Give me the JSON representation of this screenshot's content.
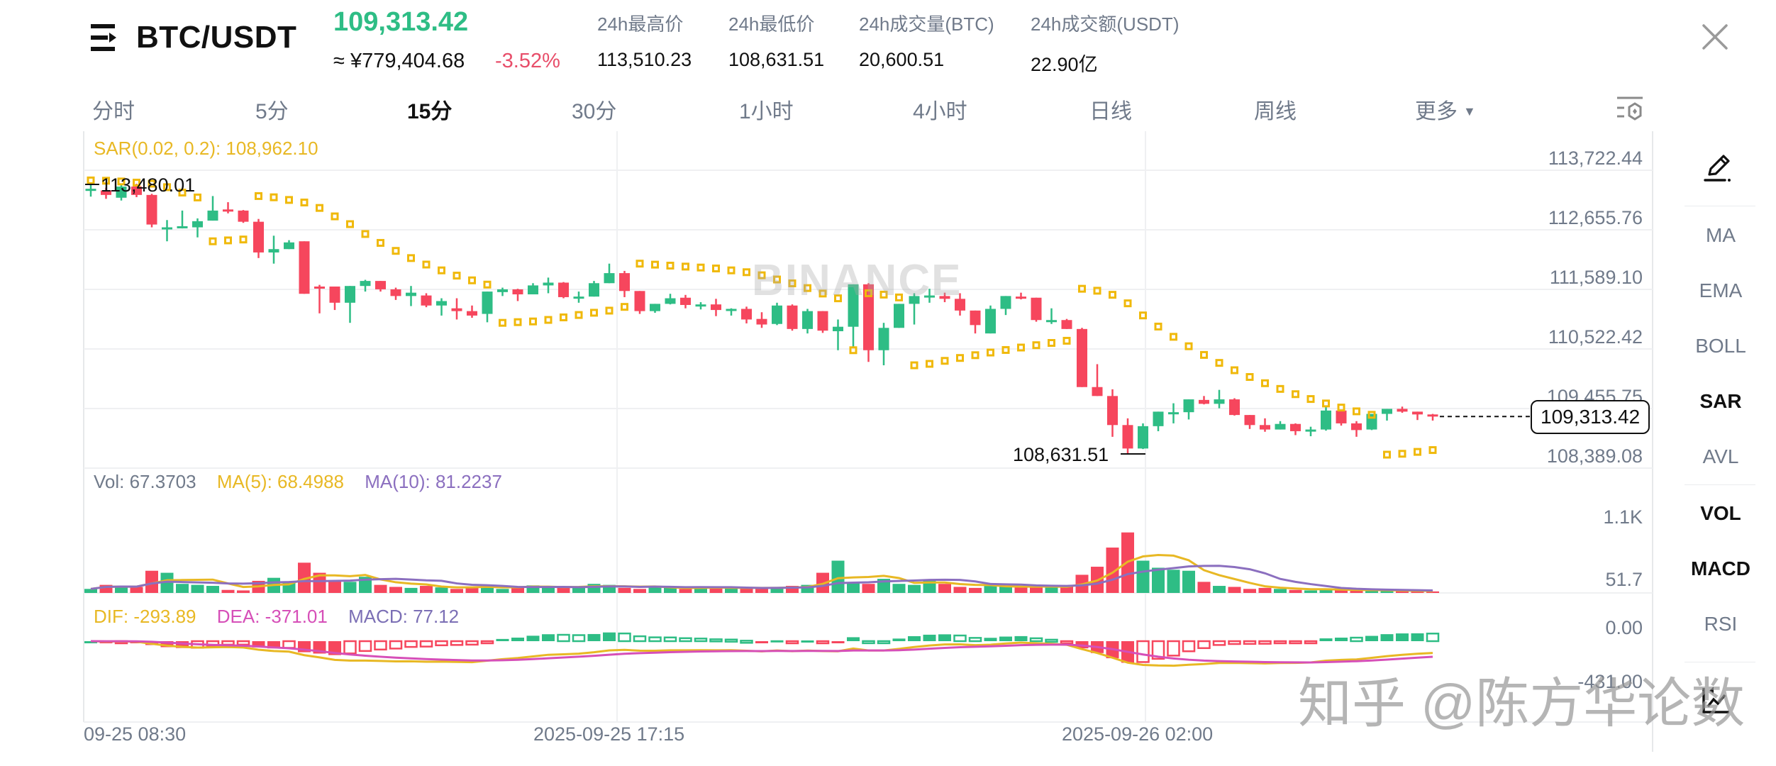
{
  "header": {
    "pair": "BTC/USDT",
    "last_price": "109,313.42",
    "cny_price": "≈ ¥779,404.68",
    "change_pct": "-3.52%",
    "stats": [
      {
        "label": "24h最高价",
        "value": "113,510.23"
      },
      {
        "label": "24h最低价",
        "value": "108,631.51"
      },
      {
        "label": "24h成交量(BTC)",
        "value": "20,600.51"
      },
      {
        "label": "24h成交额(USDT)",
        "value": "22.90亿"
      }
    ],
    "icons": {
      "menu": "menu-arrow-icon",
      "close": "close-icon"
    }
  },
  "tabs": [
    {
      "label": "分时",
      "active": false
    },
    {
      "label": "5分",
      "active": false
    },
    {
      "label": "15分",
      "active": true
    },
    {
      "label": "30分",
      "active": false
    },
    {
      "label": "1小时",
      "active": false
    },
    {
      "label": "4小时",
      "active": false
    },
    {
      "label": "日线",
      "active": false
    },
    {
      "label": "周线",
      "active": false
    },
    {
      "label": "更多",
      "active": false,
      "caret": "▼"
    }
  ],
  "sidebar": {
    "draw_icon": "pencil-icon",
    "items": [
      {
        "label": "MA",
        "active": false
      },
      {
        "label": "EMA",
        "active": false
      },
      {
        "label": "BOLL",
        "active": false
      },
      {
        "label": "SAR",
        "active": true
      },
      {
        "label": "AVL",
        "active": false
      },
      {
        "label": "VOL",
        "active": true
      },
      {
        "label": "MACD",
        "active": true
      },
      {
        "label": "RSI",
        "active": false
      }
    ],
    "bottom_icon": "chart-expand-icon"
  },
  "legends": {
    "sar": "SAR(0.02, 0.2): 108,962.10",
    "vol": "Vol: 67.3703",
    "vol_ma5": "MA(5): 68.4988",
    "vol_ma10": "MA(10): 81.2237",
    "dif": "DIF: -293.89",
    "dea": "DEA: -371.01",
    "macd": "MACD: 77.12"
  },
  "price_axis": [
    "113,722.44",
    "112,655.76",
    "111,589.10",
    "110,522.42",
    "109,455.75",
    "108,389.08"
  ],
  "vol_axis": [
    "1.1K",
    "51.7"
  ],
  "macd_axis": [
    "0.00",
    "-431.00"
  ],
  "time_axis": [
    "09-25 08:30",
    "2025-09-25 17:15",
    "2025-09-26 02:00"
  ],
  "current_price_tag": "109,313.42",
  "high_marker": "113,480.01",
  "low_marker": "108,631.51",
  "watermarks": {
    "exchange": "BINANCE",
    "author": "知乎 @陈方华论数"
  },
  "colors": {
    "up": "#2ebd85",
    "down": "#f6465d",
    "sar": "#f0b90b",
    "ma5": "#e8b824",
    "ma10": "#8b6fbf",
    "dif": "#e8b824",
    "dea": "#d64fb8",
    "macd_label": "#7b6fb5",
    "grid": "#eff0f2"
  },
  "chart_data": {
    "type": "candlestick",
    "title": "BTC/USDT 15分",
    "interval": "15m",
    "price_range": [
      108389.08,
      113722.44
    ],
    "xlabels": [
      "09-25 08:30",
      "2025-09-25 17:15",
      "2025-09-26 02:00"
    ],
    "candles_ohlc": [
      [
        113370,
        113480,
        113250,
        113390
      ],
      [
        113360,
        113410,
        113210,
        113280
      ],
      [
        113230,
        113470,
        113180,
        113430
      ],
      [
        113430,
        113480,
        113240,
        113280
      ],
      [
        113280,
        113300,
        112700,
        112750
      ],
      [
        112700,
        112830,
        112450,
        112700
      ],
      [
        112700,
        113000,
        112680,
        112720
      ],
      [
        112700,
        112860,
        112520,
        112810
      ],
      [
        112820,
        113260,
        112820,
        113000
      ],
      [
        113020,
        113150,
        112950,
        112990
      ],
      [
        113000,
        113010,
        112780,
        112800
      ],
      [
        112800,
        112850,
        112150,
        112250
      ],
      [
        112250,
        112550,
        112050,
        112310
      ],
      [
        112310,
        112470,
        112420,
        112430
      ],
      [
        112450,
        112300,
        111520,
        111510
      ],
      [
        111640,
        111670,
        111160,
        111620
      ],
      [
        111640,
        111620,
        111220,
        111350
      ],
      [
        111350,
        111460,
        110990,
        111650
      ],
      [
        111650,
        111760,
        111550,
        111740
      ],
      [
        111740,
        111720,
        111550,
        111590
      ],
      [
        111590,
        111620,
        111400,
        111470
      ],
      [
        111470,
        111650,
        111290,
        111530
      ],
      [
        111480,
        111520,
        111270,
        111300
      ],
      [
        111300,
        111430,
        111120,
        111380
      ],
      [
        111250,
        111430,
        111050,
        111200
      ],
      [
        111200,
        111300,
        111080,
        111120
      ],
      [
        111150,
        111520,
        111000,
        111550
      ],
      [
        111540,
        111620,
        111470,
        111590
      ],
      [
        111590,
        111600,
        111380,
        111500
      ],
      [
        111500,
        111700,
        111500,
        111660
      ],
      [
        111660,
        111800,
        111520,
        111710
      ],
      [
        111710,
        111720,
        111430,
        111450
      ],
      [
        111450,
        111550,
        111350,
        111460
      ],
      [
        111460,
        111740,
        111460,
        111700
      ],
      [
        111700,
        112050,
        111700,
        111880
      ],
      [
        111880,
        111920,
        111450,
        111560
      ],
      [
        111560,
        111560,
        111150,
        111200
      ],
      [
        111200,
        111320,
        111170,
        111330
      ],
      [
        111330,
        111510,
        111320,
        111430
      ],
      [
        111440,
        111490,
        111250,
        111310
      ],
      [
        111320,
        111360,
        111230,
        111320
      ],
      [
        111320,
        111420,
        111110,
        111220
      ],
      [
        111220,
        111250,
        111120,
        111240
      ],
      [
        111240,
        111280,
        110980,
        111050
      ],
      [
        111060,
        111180,
        110900,
        110960
      ],
      [
        110970,
        111350,
        110950,
        111300
      ],
      [
        111300,
        111320,
        110850,
        110880
      ],
      [
        110880,
        111240,
        110800,
        111200
      ],
      [
        111200,
        111180,
        110810,
        110850
      ],
      [
        110840,
        111050,
        110500,
        110920
      ],
      [
        110920,
        111520,
        110560,
        111680
      ],
      [
        111680,
        111700,
        110290,
        110500
      ],
      [
        110500,
        110990,
        110230,
        110900
      ],
      [
        110900,
        111300,
        110930,
        111330
      ],
      [
        111330,
        111520,
        110960,
        111470
      ],
      [
        111460,
        111600,
        111350,
        111480
      ],
      [
        111470,
        111530,
        111360,
        111420
      ],
      [
        111420,
        111520,
        111120,
        111210
      ],
      [
        111210,
        111170,
        110800,
        110950
      ],
      [
        110800,
        111300,
        110800,
        111240
      ],
      [
        111240,
        111460,
        111130,
        111470
      ],
      [
        111460,
        111530,
        111410,
        111440
      ],
      [
        111440,
        111410,
        111010,
        111040
      ],
      [
        111040,
        111250,
        110970,
        111040
      ],
      [
        111040,
        111060,
        110880,
        110880
      ],
      [
        110880,
        110900,
        109850,
        109840
      ],
      [
        109840,
        110250,
        109740,
        109680
      ],
      [
        109680,
        109800,
        108950,
        109160
      ],
      [
        109160,
        109280,
        108630,
        108740
      ],
      [
        108740,
        109190,
        108730,
        109140
      ],
      [
        109140,
        109350,
        109050,
        109400
      ],
      [
        109390,
        109550,
        109190,
        109390
      ],
      [
        109390,
        109600,
        109260,
        109620
      ],
      [
        109610,
        109680,
        109530,
        109540
      ],
      [
        109540,
        109790,
        109460,
        109620
      ],
      [
        109620,
        109640,
        109330,
        109340
      ],
      [
        109340,
        109340,
        109090,
        109160
      ],
      [
        109160,
        109280,
        109040,
        109080
      ],
      [
        109080,
        109230,
        109110,
        109180
      ],
      [
        109180,
        109190,
        108980,
        109050
      ],
      [
        109050,
        109130,
        108960,
        109080
      ],
      [
        109080,
        109480,
        109060,
        109420
      ],
      [
        109420,
        109430,
        109150,
        109190
      ],
      [
        109190,
        109230,
        108950,
        109070
      ],
      [
        109080,
        109340,
        109070,
        109360
      ],
      [
        109360,
        109430,
        109240,
        109450
      ],
      [
        109450,
        109490,
        109380,
        109400
      ],
      [
        109400,
        109400,
        109250,
        109350
      ],
      [
        109350,
        109360,
        109240,
        109313
      ]
    ],
    "volume": [
      40,
      80,
      70,
      60,
      220,
      200,
      90,
      80,
      70,
      30,
      25,
      120,
      150,
      100,
      300,
      200,
      120,
      110,
      160,
      80,
      60,
      50,
      70,
      55,
      40,
      60,
      80,
      40,
      60,
      75,
      55,
      60,
      50,
      90,
      80,
      50,
      40,
      60,
      50,
      40,
      60,
      55,
      50,
      45,
      40,
      60,
      70,
      80,
      200,
      320,
      100,
      90,
      140,
      90,
      80,
      120,
      90,
      60,
      50,
      70,
      60,
      70,
      60,
      55,
      60,
      180,
      260,
      450,
      600,
      320,
      250,
      230,
      220,
      110,
      70,
      60,
      40,
      50,
      40,
      30,
      25,
      40,
      30,
      25,
      20,
      22,
      20,
      18,
      15
    ],
    "vol_range": [
      0,
      1100
    ],
    "macd": {
      "dif": [],
      "dea": [],
      "hist": [],
      "range": [
        -431.0,
        120
      ]
    }
  }
}
